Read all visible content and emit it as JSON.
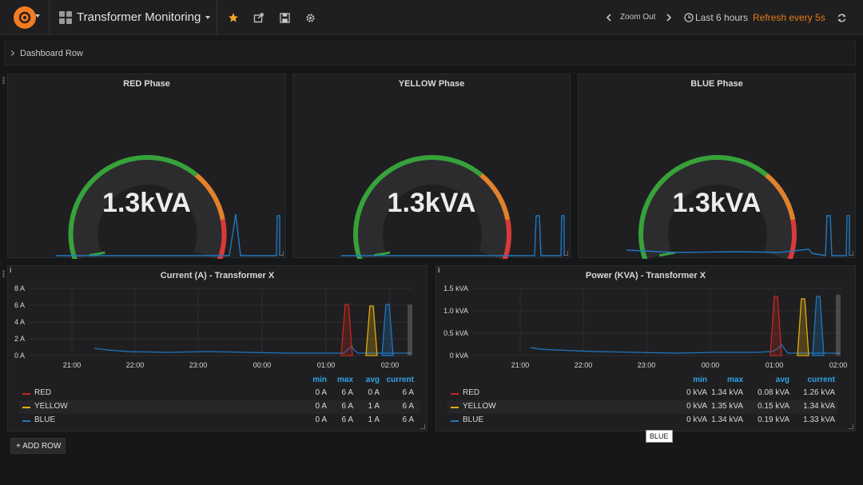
{
  "topbar": {
    "title": "Transformer Monitoring",
    "zoom_out": "Zoom Out",
    "time_range": "Last 6 hours",
    "refresh": "Refresh every 5s",
    "refresh_color": "#eb7b18",
    "star_color": "#f5a623"
  },
  "row": {
    "title": "Dashboard Row"
  },
  "gauges": [
    {
      "title": "RED Phase",
      "value": "1.3kVA"
    },
    {
      "title": "YELLOW Phase",
      "value": "1.3kVA"
    },
    {
      "title": "BLUE Phase",
      "value": "1.3kVA"
    }
  ],
  "gauge_colors": {
    "ok": "#37a23a",
    "warn": "#e0822b",
    "crit": "#d83a3a",
    "spark": "#1f78c1"
  },
  "graphs": [
    {
      "title": "Current (A) - Transformer X",
      "y_ticks": [
        "8 A",
        "6 A",
        "4 A",
        "2 A",
        "0 A"
      ],
      "x_ticks": [
        "21:00",
        "22:00",
        "23:00",
        "00:00",
        "01:00",
        "02:00"
      ],
      "legend_headers": [
        "min",
        "max",
        "avg",
        "current"
      ],
      "legend": [
        {
          "name": "RED",
          "color": "#c4281e",
          "min": "0 A",
          "max": "6 A",
          "avg": "0 A",
          "current": "6 A"
        },
        {
          "name": "YELLOW",
          "color": "#e5ac0e",
          "min": "0 A",
          "max": "6 A",
          "avg": "1 A",
          "current": "6 A"
        },
        {
          "name": "BLUE",
          "color": "#1f78c1",
          "min": "0 A",
          "max": "6 A",
          "avg": "1 A",
          "current": "6 A"
        }
      ]
    },
    {
      "title": "Power (KVA) - Transformer X",
      "y_ticks": [
        "1.5 kVA",
        "1.0 kVA",
        "0.5 kVA",
        "0 kVA"
      ],
      "x_ticks": [
        "21:00",
        "22:00",
        "23:00",
        "00:00",
        "01:00",
        "02:00"
      ],
      "legend_headers": [
        "min",
        "max",
        "avg",
        "current"
      ],
      "legend": [
        {
          "name": "RED",
          "color": "#c4281e",
          "min": "0 kVA",
          "max": "1.34 kVA",
          "avg": "0.08 kVA",
          "current": "1.26 kVA"
        },
        {
          "name": "YELLOW",
          "color": "#e5ac0e",
          "min": "0 kVA",
          "max": "1.35 kVA",
          "avg": "0.15 kVA",
          "current": "1.34 kVA"
        },
        {
          "name": "BLUE",
          "color": "#1f78c1",
          "min": "0 kVA",
          "max": "1.34 kVA",
          "avg": "0.19 kVA",
          "current": "1.33 kVA"
        }
      ]
    }
  ],
  "add_row": "+ ADD ROW",
  "tooltip": "BLUE"
}
